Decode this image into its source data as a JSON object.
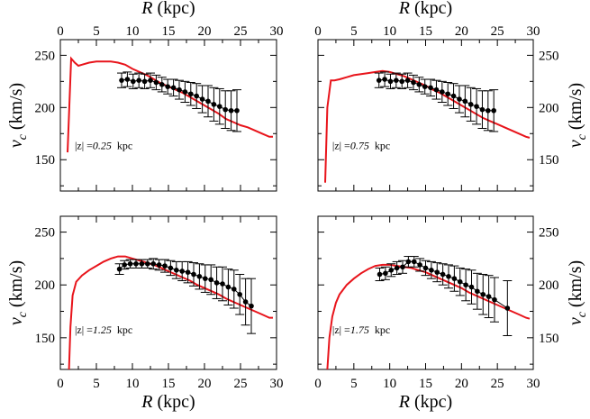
{
  "chart_data": [
    {
      "type": "scatter",
      "panel": "top-left",
      "xlim": [
        0,
        30
      ],
      "ylim": [
        120,
        265
      ],
      "xticks": [
        0,
        5,
        10,
        15,
        20,
        25,
        30
      ],
      "yticks": [
        150,
        200,
        250
      ],
      "x_ticklabels_side": "top",
      "y_ticklabels_side": "left",
      "xlabel": "R (kpc)",
      "ylabel": "v_c (km/s)",
      "annotation": {
        "label": "|z| =",
        "value": "0.25",
        "unit": "kpc"
      },
      "series": [
        {
          "kind": "line",
          "color": "#e8141b",
          "x": [
            1.0,
            1.5,
            2.0,
            2.5,
            3,
            4,
            5,
            6,
            7,
            8,
            9,
            10,
            11,
            12,
            13,
            14,
            15,
            16,
            17,
            18,
            19,
            20,
            21,
            22,
            23,
            24,
            25,
            26,
            27,
            28,
            29,
            29.5
          ],
          "y": [
            157,
            247,
            243,
            240,
            241,
            243,
            244,
            244,
            244,
            243,
            241,
            237,
            234,
            231,
            227,
            223,
            220,
            217,
            214,
            210,
            206,
            202,
            198,
            194,
            189,
            186,
            183,
            181,
            178,
            175,
            172,
            172
          ]
        },
        {
          "kind": "points",
          "color": "#000000",
          "x": [
            8.5,
            9.3,
            10.1,
            10.9,
            11.7,
            12.5,
            13.3,
            14.1,
            14.9,
            15.7,
            16.5,
            17.3,
            18.1,
            18.9,
            19.7,
            20.5,
            21.3,
            22.1,
            22.9,
            23.7,
            24.5
          ],
          "y": [
            226,
            227,
            225,
            226,
            225,
            226,
            224,
            222,
            220,
            219,
            217,
            215,
            213,
            211,
            208,
            206,
            203,
            201,
            198,
            197,
            197
          ],
          "err": [
            7,
            7,
            7,
            7,
            7,
            7,
            7,
            7,
            7,
            8,
            9,
            10,
            11,
            12,
            13,
            15,
            16,
            17,
            18,
            19,
            20
          ]
        }
      ]
    },
    {
      "type": "scatter",
      "panel": "top-right",
      "xlim": [
        0,
        30
      ],
      "ylim": [
        120,
        265
      ],
      "xticks": [
        0,
        5,
        10,
        15,
        20,
        25,
        30
      ],
      "yticks": [
        150,
        200,
        250
      ],
      "x_ticklabels_side": "top",
      "y_ticklabels_side": "right",
      "xlabel": "R (kpc)",
      "ylabel": "v_c (km/s)",
      "annotation": {
        "label": "|z| =",
        "value": "0.75",
        "unit": "kpc"
      },
      "series": [
        {
          "kind": "line",
          "color": "#e8141b",
          "x": [
            1.0,
            1.3,
            1.8,
            2.3,
            3,
            4,
            5,
            6,
            7,
            8,
            9,
            10,
            11,
            12,
            13,
            14,
            15,
            16,
            17,
            18,
            19,
            20,
            21,
            22,
            23,
            24,
            25,
            26,
            27,
            28,
            29,
            29.5
          ],
          "y": [
            128,
            200,
            226,
            226,
            227,
            229,
            231,
            232,
            233,
            234,
            235,
            234,
            232,
            230,
            227,
            224,
            221,
            217,
            214,
            210,
            206,
            202,
            198,
            194,
            190,
            187,
            184,
            181,
            178,
            175,
            172,
            171
          ]
        },
        {
          "kind": "points",
          "color": "#000000",
          "x": [
            8.5,
            9.3,
            10.1,
            10.9,
            11.7,
            12.5,
            13.3,
            14.1,
            14.9,
            15.7,
            16.5,
            17.3,
            18.1,
            18.9,
            19.7,
            20.5,
            21.3,
            22.1,
            22.9,
            23.7,
            24.5
          ],
          "y": [
            226,
            227,
            225,
            226,
            225,
            226,
            224,
            222,
            220,
            219,
            217,
            215,
            213,
            211,
            208,
            206,
            203,
            201,
            198,
            197,
            197
          ],
          "err": [
            7,
            7,
            7,
            7,
            7,
            7,
            7,
            7,
            7,
            8,
            9,
            10,
            11,
            12,
            13,
            15,
            16,
            17,
            18,
            19,
            20
          ]
        }
      ]
    },
    {
      "type": "scatter",
      "panel": "bottom-left",
      "xlim": [
        0,
        30
      ],
      "ylim": [
        120,
        265
      ],
      "xticks": [
        0,
        5,
        10,
        15,
        20,
        25,
        30
      ],
      "yticks": [
        150,
        200,
        250
      ],
      "x_ticklabels_side": "bottom",
      "y_ticklabels_side": "left",
      "xlabel": "R (kpc)",
      "ylabel": "v_c (km/s)",
      "annotation": {
        "label": "|z| =",
        "value": "1.25",
        "unit": "kpc"
      },
      "series": [
        {
          "kind": "line",
          "color": "#e8141b",
          "x": [
            1.2,
            1.4,
            1.7,
            2.2,
            3,
            4,
            5,
            6,
            7,
            8,
            9,
            10,
            11,
            12,
            13,
            14,
            15,
            16,
            17,
            18,
            19,
            20,
            21,
            22,
            23,
            24,
            25,
            26,
            27,
            28,
            29,
            29.5
          ],
          "y": [
            120,
            160,
            190,
            203,
            209,
            214,
            218,
            222,
            225,
            227,
            227,
            225,
            223,
            221,
            219,
            216,
            213,
            210,
            207,
            204,
            200,
            197,
            194,
            191,
            187,
            184,
            181,
            178,
            175,
            172,
            169,
            169
          ]
        },
        {
          "kind": "points",
          "color": "#000000",
          "x": [
            8.2,
            8.9,
            9.7,
            10.5,
            11.3,
            12.1,
            12.9,
            13.7,
            14.5,
            15.3,
            16.1,
            16.9,
            17.7,
            18.5,
            19.3,
            20.1,
            20.9,
            21.7,
            22.5,
            23.3,
            24.1,
            24.9,
            25.7,
            26.5
          ],
          "y": [
            215,
            219,
            220,
            220,
            220,
            220,
            220,
            219,
            218,
            216,
            214,
            213,
            212,
            210,
            208,
            206,
            205,
            202,
            201,
            198,
            196,
            191,
            184,
            180
          ],
          "err": [
            5,
            4,
            4,
            4,
            4,
            4,
            5,
            5,
            6,
            7,
            8,
            9,
            10,
            11,
            12,
            13,
            14,
            15,
            16,
            17,
            18,
            19,
            22,
            26
          ]
        }
      ]
    },
    {
      "type": "scatter",
      "panel": "bottom-right",
      "xlim": [
        0,
        30
      ],
      "ylim": [
        120,
        265
      ],
      "xticks": [
        0,
        5,
        10,
        15,
        20,
        25,
        30
      ],
      "yticks": [
        150,
        200,
        250
      ],
      "x_ticklabels_side": "bottom",
      "y_ticklabels_side": "right",
      "xlabel": "R (kpc)",
      "ylabel": "v_c (km/s)",
      "annotation": {
        "label": "|z| =",
        "value": "1.75",
        "unit": "kpc"
      },
      "series": [
        {
          "kind": "line",
          "color": "#e8141b",
          "x": [
            1.3,
            1.6,
            2.0,
            2.5,
            3,
            4,
            5,
            6,
            7,
            8,
            9,
            10,
            11,
            12,
            13,
            14,
            15,
            16,
            17,
            18,
            19,
            20,
            21,
            22,
            23,
            24,
            25,
            26,
            27,
            28,
            29,
            29.5
          ],
          "y": [
            120,
            150,
            170,
            183,
            191,
            200,
            206,
            211,
            215,
            218,
            219,
            219,
            218,
            217,
            216,
            214,
            212,
            209,
            206,
            203,
            200,
            197,
            193,
            190,
            187,
            184,
            181,
            178,
            175,
            172,
            169,
            168
          ]
        },
        {
          "kind": "points",
          "color": "#000000",
          "x": [
            8.6,
            9.4,
            10.2,
            11.0,
            11.8,
            12.6,
            13.4,
            14.2,
            15.0,
            15.8,
            16.6,
            17.4,
            18.2,
            19.0,
            19.8,
            20.6,
            21.4,
            22.2,
            23.0,
            23.8,
            24.6,
            26.4
          ],
          "y": [
            210,
            211,
            214,
            216,
            217,
            222,
            222,
            219,
            216,
            214,
            212,
            210,
            208,
            206,
            203,
            200,
            198,
            194,
            191,
            189,
            186,
            178
          ],
          "err": [
            6,
            6,
            6,
            6,
            6,
            5,
            5,
            6,
            7,
            8,
            9,
            10,
            11,
            12,
            13,
            15,
            16,
            17,
            19,
            20,
            21,
            26
          ]
        }
      ]
    }
  ]
}
